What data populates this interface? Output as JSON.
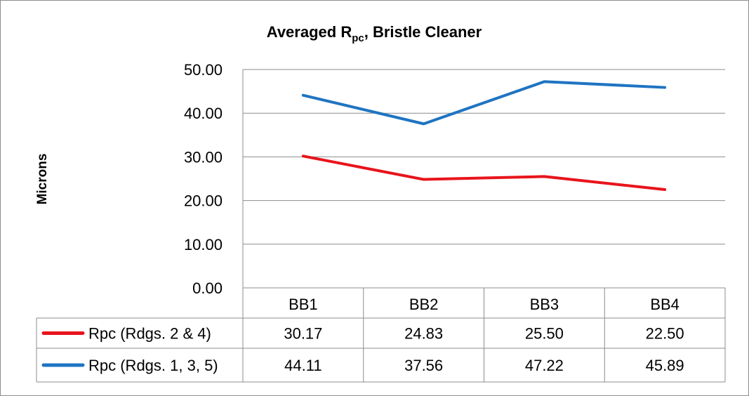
{
  "chart_data": {
    "type": "line",
    "title": {
      "main": "Averaged R",
      "subscript": "pc",
      "rest": ", Bristle Cleaner"
    },
    "xlabel": "",
    "ylabel": "Microns",
    "ylim": [
      0,
      50
    ],
    "yticks": [
      "0.00",
      "10.00",
      "20.00",
      "30.00",
      "40.00",
      "50.00"
    ],
    "grid": "horizontal",
    "legend": "data-table",
    "categories": [
      "BB1",
      "BB2",
      "BB3",
      "BB4"
    ],
    "series": [
      {
        "name": "Rpc (Rdgs. 2 & 4)",
        "color": "#e8141b",
        "values": [
          30.17,
          24.83,
          25.5,
          22.5
        ],
        "labels": [
          "30.17",
          "24.83",
          "25.50",
          "22.50"
        ]
      },
      {
        "name": "Rpc (Rdgs. 1, 3, 5)",
        "color": "#1f74c2",
        "values": [
          44.11,
          37.56,
          47.22,
          45.89
        ],
        "labels": [
          "44.11",
          "37.56",
          "47.22",
          "45.89"
        ]
      }
    ]
  }
}
